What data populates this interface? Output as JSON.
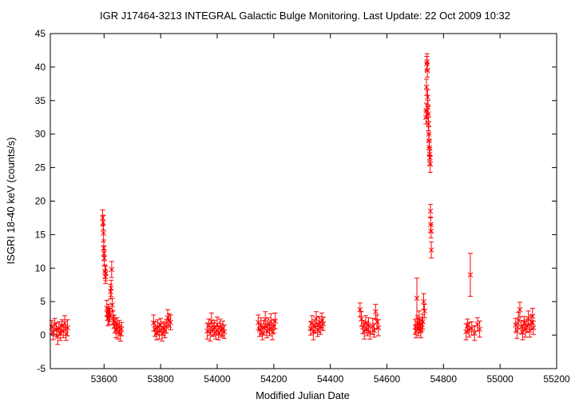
{
  "chart_data": {
    "type": "scatter",
    "title": "IGR J17464-3213   INTEGRAL Galactic Bulge Monitoring.  Last Update: 22 Oct 2009 10:32",
    "xlabel": "Modified Julian Date",
    "ylabel": "ISGRI 18-40 keV (counts/s)",
    "xlim": [
      53410,
      55200
    ],
    "ylim": [
      -5,
      45
    ],
    "x_ticks": [
      53600,
      53800,
      54000,
      54200,
      54400,
      54600,
      54800,
      55000,
      55200
    ],
    "y_ticks": [
      -5,
      0,
      5,
      10,
      15,
      20,
      25,
      30,
      35,
      40,
      45
    ],
    "grid": false,
    "legend": "none",
    "marker": "x with error bars",
    "color": "#ff0000",
    "series": [
      {
        "points": [
          {
            "x": 53415,
            "y": 1.2,
            "err": 1.0
          },
          {
            "x": 53420,
            "y": 0.4,
            "err": 1.1
          },
          {
            "x": 53426,
            "y": 1.6,
            "err": 0.9
          },
          {
            "x": 53431,
            "y": 0.8,
            "err": 1.0
          },
          {
            "x": 53436,
            "y": -0.2,
            "err": 1.2
          },
          {
            "x": 53441,
            "y": 1.0,
            "err": 1.0
          },
          {
            "x": 53446,
            "y": 0.3,
            "err": 1.1
          },
          {
            "x": 53451,
            "y": 1.4,
            "err": 0.9
          },
          {
            "x": 53456,
            "y": 0.6,
            "err": 1.0
          },
          {
            "x": 53461,
            "y": 1.8,
            "err": 1.1
          },
          {
            "x": 53466,
            "y": 0.2,
            "err": 1.0
          },
          {
            "x": 53471,
            "y": 1.1,
            "err": 1.2
          },
          {
            "x": 53595,
            "y": 17.5,
            "err": 1.2
          },
          {
            "x": 53597,
            "y": 16.8,
            "err": 1.1
          },
          {
            "x": 53598,
            "y": 15.2,
            "err": 1.3
          },
          {
            "x": 53599,
            "y": 13.0,
            "err": 1.2
          },
          {
            "x": 53600,
            "y": 12.2,
            "err": 1.1
          },
          {
            "x": 53601,
            "y": 11.5,
            "err": 1.2
          },
          {
            "x": 53603,
            "y": 9.5,
            "err": 1.0
          },
          {
            "x": 53605,
            "y": 8.7,
            "err": 1.0
          },
          {
            "x": 53606,
            "y": 9.2,
            "err": 1.1
          },
          {
            "x": 53610,
            "y": 4.0,
            "err": 1.2
          },
          {
            "x": 53612,
            "y": 3.2,
            "err": 1.0
          },
          {
            "x": 53614,
            "y": 2.5,
            "err": 1.1
          },
          {
            "x": 53616,
            "y": 3.6,
            "err": 1.0
          },
          {
            "x": 53618,
            "y": 2.8,
            "err": 1.2
          },
          {
            "x": 53620,
            "y": 3.0,
            "err": 1.0
          },
          {
            "x": 53623,
            "y": 6.5,
            "err": 1.1
          },
          {
            "x": 53625,
            "y": 7.0,
            "err": 1.2
          },
          {
            "x": 53627,
            "y": 9.8,
            "err": 1.2
          },
          {
            "x": 53629,
            "y": 4.5,
            "err": 1.0
          },
          {
            "x": 53632,
            "y": 2.6,
            "err": 1.1
          },
          {
            "x": 53635,
            "y": 2.0,
            "err": 1.0
          },
          {
            "x": 53638,
            "y": 1.4,
            "err": 1.1
          },
          {
            "x": 53642,
            "y": 0.8,
            "err": 1.2
          },
          {
            "x": 53646,
            "y": 1.6,
            "err": 1.0
          },
          {
            "x": 53650,
            "y": 0.5,
            "err": 1.1
          },
          {
            "x": 53654,
            "y": 1.2,
            "err": 1.0
          },
          {
            "x": 53658,
            "y": 0.2,
            "err": 1.1
          },
          {
            "x": 53662,
            "y": 0.9,
            "err": 1.0
          },
          {
            "x": 53775,
            "y": 1.8,
            "err": 1.2
          },
          {
            "x": 53780,
            "y": 0.9,
            "err": 1.1
          },
          {
            "x": 53785,
            "y": 0.3,
            "err": 1.0
          },
          {
            "x": 53790,
            "y": 1.2,
            "err": 1.1
          },
          {
            "x": 53795,
            "y": 0.6,
            "err": 1.2
          },
          {
            "x": 53800,
            "y": 1.5,
            "err": 1.0
          },
          {
            "x": 53805,
            "y": 0.2,
            "err": 1.1
          },
          {
            "x": 53810,
            "y": 1.0,
            "err": 1.0
          },
          {
            "x": 53815,
            "y": 0.7,
            "err": 1.1
          },
          {
            "x": 53820,
            "y": 1.3,
            "err": 1.0
          },
          {
            "x": 53825,
            "y": 2.6,
            "err": 1.2
          },
          {
            "x": 53830,
            "y": 2.2,
            "err": 1.0
          },
          {
            "x": 53835,
            "y": 1.9,
            "err": 1.1
          },
          {
            "x": 53965,
            "y": 0.6,
            "err": 1.2
          },
          {
            "x": 53970,
            "y": 1.4,
            "err": 1.0
          },
          {
            "x": 53975,
            "y": 0.2,
            "err": 1.1
          },
          {
            "x": 53980,
            "y": 2.0,
            "err": 1.3
          },
          {
            "x": 53985,
            "y": 0.8,
            "err": 1.0
          },
          {
            "x": 53990,
            "y": 1.1,
            "err": 1.1
          },
          {
            "x": 53995,
            "y": 0.4,
            "err": 1.0
          },
          {
            "x": 54000,
            "y": 1.6,
            "err": 1.1
          },
          {
            "x": 54005,
            "y": 0.3,
            "err": 1.0
          },
          {
            "x": 54010,
            "y": 1.2,
            "err": 1.2
          },
          {
            "x": 54015,
            "y": 0.7,
            "err": 1.0
          },
          {
            "x": 54020,
            "y": 1.0,
            "err": 1.1
          },
          {
            "x": 54025,
            "y": 0.5,
            "err": 1.0
          },
          {
            "x": 54145,
            "y": 1.9,
            "err": 1.1
          },
          {
            "x": 54150,
            "y": 0.8,
            "err": 1.0
          },
          {
            "x": 54155,
            "y": 1.4,
            "err": 1.2
          },
          {
            "x": 54160,
            "y": 0.3,
            "err": 1.0
          },
          {
            "x": 54165,
            "y": 1.1,
            "err": 1.1
          },
          {
            "x": 54170,
            "y": 2.3,
            "err": 1.2
          },
          {
            "x": 54175,
            "y": 0.6,
            "err": 1.0
          },
          {
            "x": 54180,
            "y": 1.5,
            "err": 1.1
          },
          {
            "x": 54185,
            "y": 0.9,
            "err": 1.0
          },
          {
            "x": 54190,
            "y": 2.0,
            "err": 1.2
          },
          {
            "x": 54195,
            "y": 0.4,
            "err": 1.1
          },
          {
            "x": 54200,
            "y": 1.3,
            "err": 1.0
          },
          {
            "x": 54205,
            "y": 2.1,
            "err": 1.2
          },
          {
            "x": 54330,
            "y": 1.0,
            "err": 1.0
          },
          {
            "x": 54335,
            "y": 1.8,
            "err": 1.1
          },
          {
            "x": 54340,
            "y": 0.5,
            "err": 1.2
          },
          {
            "x": 54345,
            "y": 1.3,
            "err": 1.0
          },
          {
            "x": 54350,
            "y": 2.4,
            "err": 1.1
          },
          {
            "x": 54355,
            "y": 0.8,
            "err": 1.0
          },
          {
            "x": 54360,
            "y": 1.6,
            "err": 1.2
          },
          {
            "x": 54365,
            "y": 1.1,
            "err": 1.0
          },
          {
            "x": 54370,
            "y": 2.2,
            "err": 1.1
          },
          {
            "x": 54375,
            "y": 1.7,
            "err": 1.0
          },
          {
            "x": 54505,
            "y": 3.8,
            "err": 1.0
          },
          {
            "x": 54510,
            "y": 2.4,
            "err": 1.1
          },
          {
            "x": 54515,
            "y": 1.2,
            "err": 1.0
          },
          {
            "x": 54520,
            "y": 0.6,
            "err": 1.2
          },
          {
            "x": 54525,
            "y": 1.8,
            "err": 1.1
          },
          {
            "x": 54530,
            "y": 0.9,
            "err": 1.0
          },
          {
            "x": 54535,
            "y": 1.5,
            "err": 1.1
          },
          {
            "x": 54540,
            "y": 0.4,
            "err": 1.0
          },
          {
            "x": 54550,
            "y": 1.3,
            "err": 1.2
          },
          {
            "x": 54555,
            "y": 0.7,
            "err": 1.0
          },
          {
            "x": 54560,
            "y": 3.5,
            "err": 1.1
          },
          {
            "x": 54565,
            "y": 2.0,
            "err": 1.0
          },
          {
            "x": 54570,
            "y": 1.1,
            "err": 1.2
          },
          {
            "x": 54700,
            "y": 1.2,
            "err": 1.1
          },
          {
            "x": 54703,
            "y": 0.6,
            "err": 1.0
          },
          {
            "x": 54706,
            "y": 5.5,
            "err": 3.0
          },
          {
            "x": 54708,
            "y": 1.8,
            "err": 1.1
          },
          {
            "x": 54711,
            "y": 0.9,
            "err": 1.0
          },
          {
            "x": 54714,
            "y": 2.4,
            "err": 1.2
          },
          {
            "x": 54717,
            "y": 1.3,
            "err": 1.0
          },
          {
            "x": 54720,
            "y": 0.7,
            "err": 1.1
          },
          {
            "x": 54724,
            "y": 1.6,
            "err": 1.0
          },
          {
            "x": 54727,
            "y": 2.0,
            "err": 1.1
          },
          {
            "x": 54730,
            "y": 5.0,
            "err": 1.2
          },
          {
            "x": 54733,
            "y": 3.6,
            "err": 1.0
          },
          {
            "x": 54738,
            "y": 32.5,
            "err": 1.0
          },
          {
            "x": 54739,
            "y": 33.5,
            "err": 1.1
          },
          {
            "x": 54740,
            "y": 37.0,
            "err": 1.2
          },
          {
            "x": 54741,
            "y": 40.5,
            "err": 1.1
          },
          {
            "x": 54742,
            "y": 40.8,
            "err": 1.2
          },
          {
            "x": 54743,
            "y": 39.5,
            "err": 1.0
          },
          {
            "x": 54744,
            "y": 35.5,
            "err": 1.1
          },
          {
            "x": 54745,
            "y": 34.0,
            "err": 1.0
          },
          {
            "x": 54746,
            "y": 33.0,
            "err": 1.1
          },
          {
            "x": 54747,
            "y": 31.5,
            "err": 1.0
          },
          {
            "x": 54748,
            "y": 30.0,
            "err": 1.1
          },
          {
            "x": 54749,
            "y": 29.0,
            "err": 1.0
          },
          {
            "x": 54750,
            "y": 28.0,
            "err": 1.1
          },
          {
            "x": 54751,
            "y": 27.0,
            "err": 1.0
          },
          {
            "x": 54752,
            "y": 26.5,
            "err": 1.1
          },
          {
            "x": 54753,
            "y": 25.5,
            "err": 1.2
          },
          {
            "x": 54754,
            "y": 18.5,
            "err": 1.0
          },
          {
            "x": 54755,
            "y": 16.5,
            "err": 1.1
          },
          {
            "x": 54756,
            "y": 15.5,
            "err": 1.0
          },
          {
            "x": 54757,
            "y": 12.7,
            "err": 1.2
          },
          {
            "x": 54880,
            "y": 0.5,
            "err": 1.2
          },
          {
            "x": 54885,
            "y": 1.4,
            "err": 1.0
          },
          {
            "x": 54890,
            "y": 0.8,
            "err": 1.1
          },
          {
            "x": 54895,
            "y": 9.0,
            "err": 3.2
          },
          {
            "x": 54900,
            "y": 1.0,
            "err": 1.0
          },
          {
            "x": 54910,
            "y": 0.3,
            "err": 1.1
          },
          {
            "x": 54920,
            "y": 1.6,
            "err": 1.0
          },
          {
            "x": 54928,
            "y": 0.9,
            "err": 1.2
          },
          {
            "x": 55055,
            "y": 1.5,
            "err": 1.0
          },
          {
            "x": 55060,
            "y": 0.6,
            "err": 1.1
          },
          {
            "x": 55065,
            "y": 2.2,
            "err": 1.2
          },
          {
            "x": 55070,
            "y": 3.8,
            "err": 1.1
          },
          {
            "x": 55075,
            "y": 1.2,
            "err": 1.0
          },
          {
            "x": 55080,
            "y": 0.4,
            "err": 1.1
          },
          {
            "x": 55085,
            "y": 1.8,
            "err": 1.0
          },
          {
            "x": 55090,
            "y": 0.9,
            "err": 1.2
          },
          {
            "x": 55095,
            "y": 1.4,
            "err": 1.0
          },
          {
            "x": 55100,
            "y": 2.5,
            "err": 1.1
          },
          {
            "x": 55105,
            "y": 0.7,
            "err": 1.0
          },
          {
            "x": 55110,
            "y": 1.9,
            "err": 1.1
          },
          {
            "x": 55115,
            "y": 2.8,
            "err": 1.2
          },
          {
            "x": 55118,
            "y": 1.1,
            "err": 1.0
          }
        ]
      }
    ]
  }
}
